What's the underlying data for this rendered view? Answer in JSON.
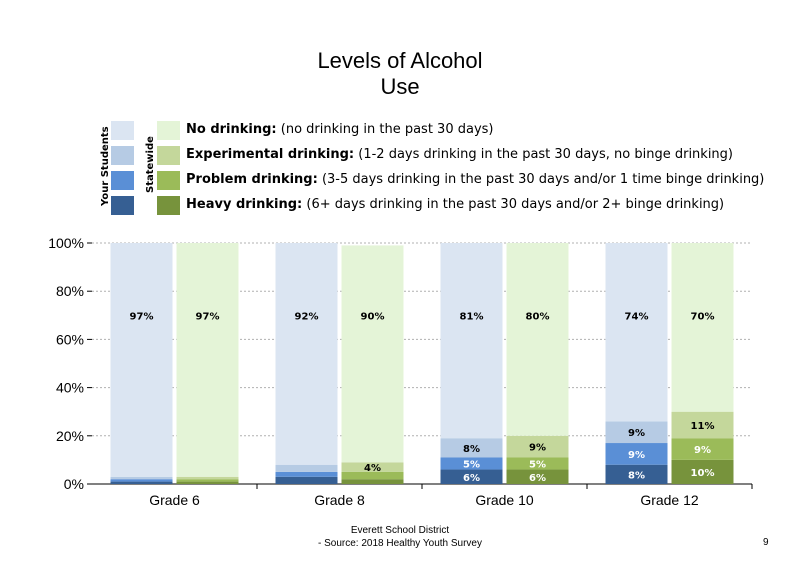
{
  "title_line1": "Levels of Alcohol",
  "title_line2": "Use",
  "legend": {
    "group_labels": [
      "Your Students",
      "Statewide"
    ],
    "items": [
      {
        "bold": "No drinking:",
        "desc": " (no drinking in the past 30 days)"
      },
      {
        "bold": "Experimental drinking:",
        "desc": " (1-2 days drinking in the past 30 days, no binge drinking)"
      },
      {
        "bold": "Problem drinking:",
        "desc": " (3-5 days drinking in the past 30 days and/or 1 time binge drinking)"
      },
      {
        "bold": "Heavy drinking:",
        "desc": " (6+ days drinking in the past 30 days and/or 2+ binge drinking)"
      }
    ]
  },
  "colors": {
    "students": [
      "#dbe5f2",
      "#b6cbe4",
      "#5a8fd6",
      "#365f93"
    ],
    "statewide": [
      "#e4f4d7",
      "#c4d79b",
      "#9bbb59",
      "#77933c"
    ]
  },
  "footer": {
    "line1": "Everett School District",
    "line2": "- Source: 2018 Healthy  Youth Survey"
  },
  "page_number": "9",
  "chart_data": {
    "type": "bar",
    "stacked": true,
    "categories": [
      "Grade 6",
      "Grade 8",
      "Grade 10",
      "Grade 12"
    ],
    "groups": [
      "Your Students",
      "Statewide"
    ],
    "stack_order": [
      "Heavy drinking",
      "Problem drinking",
      "Experimental drinking",
      "No drinking"
    ],
    "series": [
      {
        "name": "Your Students",
        "values": [
          {
            "heavy": 1,
            "problem": 1,
            "experimental": 1,
            "none": 97
          },
          {
            "heavy": 3,
            "problem": 2,
            "experimental": 3,
            "none": 92
          },
          {
            "heavy": 6,
            "problem": 5,
            "experimental": 8,
            "none": 81
          },
          {
            "heavy": 8,
            "problem": 9,
            "experimental": 9,
            "none": 74
          }
        ]
      },
      {
        "name": "Statewide",
        "values": [
          {
            "heavy": 1,
            "problem": 1,
            "experimental": 1,
            "none": 97
          },
          {
            "heavy": 2,
            "problem": 3,
            "experimental": 4,
            "none": 90
          },
          {
            "heavy": 6,
            "problem": 5,
            "experimental": 9,
            "none": 80
          },
          {
            "heavy": 10,
            "problem": 9,
            "experimental": 11,
            "none": 70
          }
        ]
      }
    ],
    "labels": [
      [
        {
          "none": "97%"
        },
        {
          "none": "97%"
        }
      ],
      [
        {
          "none": "92%"
        },
        {
          "none": "90%",
          "experimental": "4%"
        }
      ],
      [
        {
          "none": "81%",
          "experimental": "8%",
          "problem": "5%",
          "heavy": "6%"
        },
        {
          "none": "80%",
          "experimental": "9%",
          "problem": "5%",
          "heavy": "6%"
        }
      ],
      [
        {
          "none": "74%",
          "experimental": "9%",
          "problem": "9%",
          "heavy": "8%"
        },
        {
          "none": "70%",
          "experimental": "11%",
          "problem": "9%",
          "heavy": "10%"
        }
      ]
    ],
    "yticks": [
      "0%",
      "20%",
      "40%",
      "60%",
      "80%",
      "100%"
    ],
    "ylim": [
      0,
      100
    ],
    "grid": true
  }
}
